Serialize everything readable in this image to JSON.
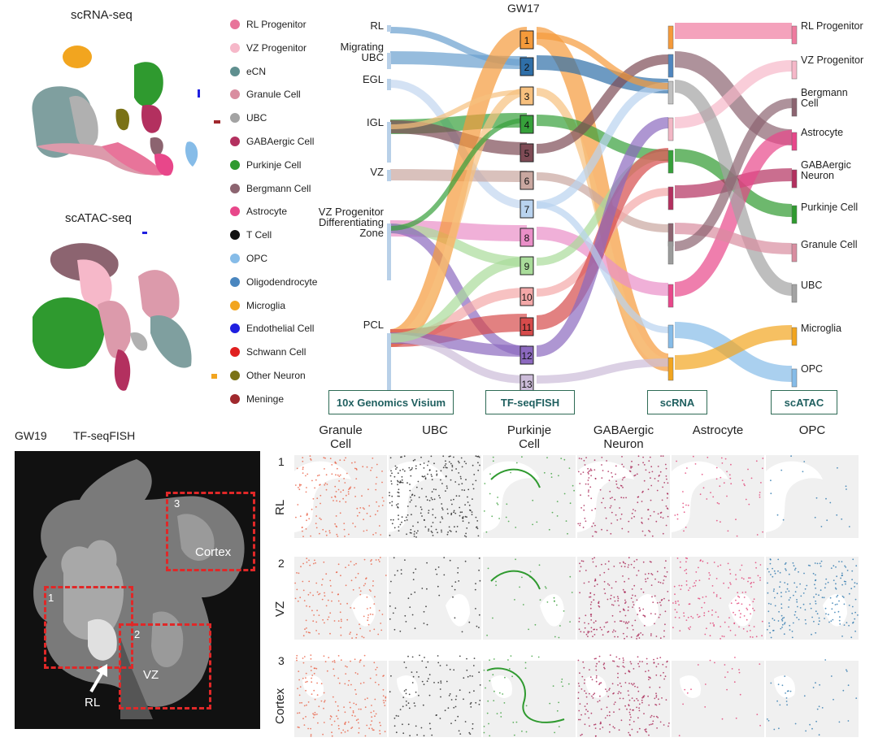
{
  "umap": {
    "rna_title": "scRNA-seq",
    "atac_title": "scATAC-seq"
  },
  "legend": [
    {
      "label": "RL Progenitor",
      "color": "#e8749a"
    },
    {
      "label": "VZ Progenitor",
      "color": "#f6b8c9"
    },
    {
      "label": "eCN",
      "color": "#5f8f8f"
    },
    {
      "label": "Granule Cell",
      "color": "#d98da0"
    },
    {
      "label": "UBC",
      "color": "#a3a3a3"
    },
    {
      "label": "GABAergic Cell",
      "color": "#b3305f"
    },
    {
      "label": "Purkinje Cell",
      "color": "#2f9a2f"
    },
    {
      "label": "Bergmann Cell",
      "color": "#8c6470"
    },
    {
      "label": "Astrocyte",
      "color": "#e8478a"
    },
    {
      "label": "T Cell",
      "color": "#111111"
    },
    {
      "label": "OPC",
      "color": "#86bce8"
    },
    {
      "label": "Oligodendrocyte",
      "color": "#4a86bf"
    },
    {
      "label": "Microglia",
      "color": "#f2a51f"
    },
    {
      "label": "Endothelial Cell",
      "color": "#1f1fe0"
    },
    {
      "label": "Schwann Cell",
      "color": "#e01f1f"
    },
    {
      "label": "Other Neuron",
      "color": "#7a7216"
    },
    {
      "label": "Meninge",
      "color": "#a0282d"
    }
  ],
  "sankey": {
    "title": "GW17",
    "left_labels": [
      {
        "text": "RL",
        "key": "rl"
      },
      {
        "text": "Migrating\nUBC",
        "key": "mubc"
      },
      {
        "text": "EGL",
        "key": "egl"
      },
      {
        "text": "IGL",
        "key": "igl"
      },
      {
        "text": "VZ",
        "key": "vz"
      },
      {
        "text": "VZ Progenitor\nDifferentiating\nZone",
        "key": "vzd"
      },
      {
        "text": "PCL",
        "key": "pcl"
      }
    ],
    "clusters": [
      "1",
      "2",
      "3",
      "4",
      "5",
      "6",
      "7",
      "8",
      "9",
      "10",
      "11",
      "12",
      "13"
    ],
    "right_labels": [
      {
        "text": "RL Progenitor",
        "key": "rlp"
      },
      {
        "text": "VZ Progenitor",
        "key": "vzp"
      },
      {
        "text": "Bergmann\nCell",
        "key": "berg"
      },
      {
        "text": "Astrocyte",
        "key": "astro"
      },
      {
        "text": "GABAergic\nNeuron",
        "key": "gaba"
      },
      {
        "text": "Purkinje Cell",
        "key": "purk"
      },
      {
        "text": "Granule Cell",
        "key": "gran"
      },
      {
        "text": "UBC",
        "key": "ubc"
      },
      {
        "text": "Microglia",
        "key": "micro"
      },
      {
        "text": "OPC",
        "key": "opc"
      }
    ],
    "methods": [
      "10x Genomics Visium",
      "TF-seqFISH",
      "scRNA",
      "scATAC"
    ]
  },
  "tissue": {
    "gw": "GW19",
    "method": "TF-seqFISH",
    "box_labels": [
      "1",
      "2",
      "3"
    ],
    "region_labels": [
      "Cortex",
      "VZ",
      "RL"
    ]
  },
  "grid": {
    "columns": [
      "Granule\nCell",
      "UBC",
      "Purkinje\nCell",
      "GABAergic\nNeuron",
      "Astrocyte",
      "OPC"
    ],
    "column_colors": [
      "#e8573a",
      "#111111",
      "#2f9a2f",
      "#a3154a",
      "#e0356e",
      "#1f6fa8"
    ],
    "rows": [
      {
        "num": "1",
        "name": "RL"
      },
      {
        "num": "2",
        "name": "VZ"
      },
      {
        "num": "3",
        "name": "Cortex"
      }
    ]
  }
}
